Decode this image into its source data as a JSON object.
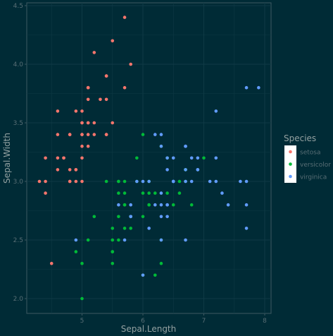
{
  "chart_data": {
    "type": "scatter",
    "title": "",
    "xlabel": "Sepal.Length",
    "ylabel": "Sepal.Width",
    "xlim": [
      4.3,
      7.9
    ],
    "ylim": [
      2.0,
      4.4
    ],
    "x_ticks": [
      5,
      6,
      7,
      8
    ],
    "y_ticks": [
      2.0,
      2.5,
      3.0,
      3.5,
      4.0,
      4.5
    ],
    "grid": true,
    "legend": {
      "title": "Species",
      "placement": "right"
    },
    "series": [
      {
        "name": "setosa",
        "color": "#f8766d",
        "points": [
          [
            5.1,
            3.5
          ],
          [
            4.9,
            3.0
          ],
          [
            4.7,
            3.2
          ],
          [
            4.6,
            3.1
          ],
          [
            5.0,
            3.6
          ],
          [
            5.4,
            3.9
          ],
          [
            4.6,
            3.4
          ],
          [
            5.0,
            3.4
          ],
          [
            4.4,
            2.9
          ],
          [
            4.9,
            3.1
          ],
          [
            5.4,
            3.7
          ],
          [
            4.8,
            3.4
          ],
          [
            4.8,
            3.0
          ],
          [
            4.3,
            3.0
          ],
          [
            5.8,
            4.0
          ],
          [
            5.7,
            4.4
          ],
          [
            5.4,
            3.9
          ],
          [
            5.1,
            3.5
          ],
          [
            5.7,
            3.8
          ],
          [
            5.1,
            3.8
          ],
          [
            5.4,
            3.4
          ],
          [
            5.1,
            3.7
          ],
          [
            4.6,
            3.6
          ],
          [
            5.1,
            3.3
          ],
          [
            4.8,
            3.4
          ],
          [
            5.0,
            3.0
          ],
          [
            5.0,
            3.4
          ],
          [
            5.2,
            3.5
          ],
          [
            5.2,
            3.4
          ],
          [
            4.7,
            3.2
          ],
          [
            4.8,
            3.1
          ],
          [
            5.4,
            3.4
          ],
          [
            5.2,
            4.1
          ],
          [
            5.5,
            4.2
          ],
          [
            4.9,
            3.1
          ],
          [
            5.0,
            3.2
          ],
          [
            5.5,
            3.5
          ],
          [
            4.9,
            3.6
          ],
          [
            4.4,
            3.0
          ],
          [
            5.1,
            3.4
          ],
          [
            5.0,
            3.5
          ],
          [
            4.5,
            2.3
          ],
          [
            4.4,
            3.2
          ],
          [
            5.0,
            3.5
          ],
          [
            5.1,
            3.8
          ],
          [
            4.8,
            3.0
          ],
          [
            5.1,
            3.8
          ],
          [
            4.6,
            3.2
          ],
          [
            5.3,
            3.7
          ],
          [
            5.0,
            3.3
          ]
        ]
      },
      {
        "name": "versicolor",
        "color": "#00ba38",
        "points": [
          [
            7.0,
            3.2
          ],
          [
            6.4,
            3.2
          ],
          [
            6.9,
            3.1
          ],
          [
            5.5,
            2.3
          ],
          [
            6.5,
            2.8
          ],
          [
            5.7,
            2.8
          ],
          [
            6.3,
            3.3
          ],
          [
            4.9,
            2.4
          ],
          [
            6.6,
            2.9
          ],
          [
            5.2,
            2.7
          ],
          [
            5.0,
            2.0
          ],
          [
            5.9,
            3.0
          ],
          [
            6.0,
            2.2
          ],
          [
            6.1,
            2.9
          ],
          [
            5.6,
            2.9
          ],
          [
            6.7,
            3.1
          ],
          [
            5.6,
            3.0
          ],
          [
            5.8,
            2.7
          ],
          [
            6.2,
            2.2
          ],
          [
            5.6,
            2.5
          ],
          [
            5.9,
            3.2
          ],
          [
            6.1,
            2.8
          ],
          [
            6.3,
            2.5
          ],
          [
            6.1,
            2.8
          ],
          [
            6.4,
            2.9
          ],
          [
            6.6,
            3.0
          ],
          [
            6.8,
            2.8
          ],
          [
            6.7,
            3.0
          ],
          [
            6.0,
            2.9
          ],
          [
            5.7,
            2.6
          ],
          [
            5.5,
            2.4
          ],
          [
            5.5,
            2.4
          ],
          [
            5.8,
            2.7
          ],
          [
            6.0,
            2.7
          ],
          [
            5.4,
            3.0
          ],
          [
            6.0,
            3.4
          ],
          [
            6.7,
            3.1
          ],
          [
            6.3,
            2.3
          ],
          [
            5.6,
            3.0
          ],
          [
            5.5,
            2.5
          ],
          [
            5.5,
            2.6
          ],
          [
            6.1,
            3.0
          ],
          [
            5.8,
            2.6
          ],
          [
            5.0,
            2.3
          ],
          [
            5.6,
            2.7
          ],
          [
            5.7,
            3.0
          ],
          [
            5.7,
            2.9
          ],
          [
            6.2,
            2.9
          ],
          [
            5.1,
            2.5
          ],
          [
            5.7,
            2.8
          ]
        ]
      },
      {
        "name": "virginica",
        "color": "#619cff",
        "points": [
          [
            6.3,
            3.3
          ],
          [
            5.8,
            2.7
          ],
          [
            7.1,
            3.0
          ],
          [
            6.3,
            2.9
          ],
          [
            6.5,
            3.0
          ],
          [
            7.6,
            3.0
          ],
          [
            4.9,
            2.5
          ],
          [
            7.3,
            2.9
          ],
          [
            6.7,
            2.5
          ],
          [
            7.2,
            3.6
          ],
          [
            6.5,
            3.2
          ],
          [
            6.4,
            2.7
          ],
          [
            6.8,
            3.0
          ],
          [
            5.7,
            2.5
          ],
          [
            5.8,
            2.8
          ],
          [
            6.4,
            3.2
          ],
          [
            6.5,
            3.0
          ],
          [
            7.7,
            3.8
          ],
          [
            7.7,
            2.6
          ],
          [
            6.0,
            2.2
          ],
          [
            6.9,
            3.2
          ],
          [
            5.6,
            2.8
          ],
          [
            7.7,
            2.8
          ],
          [
            6.3,
            2.7
          ],
          [
            6.7,
            3.3
          ],
          [
            7.2,
            3.2
          ],
          [
            6.2,
            2.8
          ],
          [
            6.1,
            3.0
          ],
          [
            6.4,
            2.8
          ],
          [
            7.2,
            3.0
          ],
          [
            7.4,
            2.8
          ],
          [
            7.9,
            3.8
          ],
          [
            6.4,
            2.8
          ],
          [
            6.3,
            2.8
          ],
          [
            6.1,
            2.6
          ],
          [
            7.7,
            3.0
          ],
          [
            6.3,
            3.4
          ],
          [
            6.4,
            3.1
          ],
          [
            6.0,
            3.0
          ],
          [
            6.9,
            3.1
          ],
          [
            6.7,
            3.1
          ],
          [
            6.9,
            3.1
          ],
          [
            5.8,
            2.7
          ],
          [
            6.8,
            3.2
          ],
          [
            6.7,
            3.3
          ],
          [
            6.7,
            3.0
          ],
          [
            6.3,
            2.5
          ],
          [
            6.5,
            3.0
          ],
          [
            6.2,
            3.4
          ],
          [
            5.9,
            3.0
          ]
        ]
      }
    ]
  }
}
